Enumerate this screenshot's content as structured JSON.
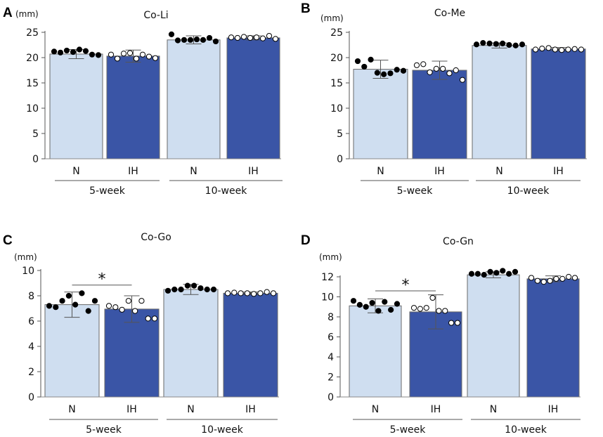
{
  "colors": {
    "N": "#cfdef0",
    "IH": "#3a55a6",
    "axis": "#555555",
    "dot_fill_N": "#000000",
    "dot_fill_IH": "#ffffff"
  },
  "chart_data": [
    {
      "type": "bar",
      "panel": "A",
      "title": "Co-Li",
      "ylabel": "(mm)",
      "ylim": [
        0,
        25
      ],
      "yticks": [
        0,
        5,
        10,
        15,
        20,
        25
      ],
      "categories": [
        "N",
        "IH",
        "N",
        "IH"
      ],
      "groups": [
        "5-week",
        "10-week"
      ],
      "series": [
        {
          "name": "N",
          "group": "5-week",
          "mean": 20.7,
          "sd": 0.9,
          "points": [
            21.2,
            21.0,
            21.4,
            21.1,
            21.6,
            21.3,
            20.6,
            20.5
          ],
          "hollow": false
        },
        {
          "name": "IH",
          "group": "5-week",
          "mean": 20.3,
          "sd": 1.2,
          "points": [
            20.6,
            19.8,
            20.8,
            20.9,
            19.8,
            20.6,
            20.2,
            19.9
          ],
          "hollow": true
        },
        {
          "name": "N",
          "group": "10-week",
          "mean": 23.5,
          "sd": 0.8,
          "points": [
            24.6,
            23.4,
            23.5,
            23.5,
            23.6,
            23.5,
            23.9,
            23.2
          ],
          "hollow": false
        },
        {
          "name": "IH",
          "group": "10-week",
          "mean": 23.9,
          "sd": 0.4,
          "points": [
            24.0,
            23.9,
            24.1,
            23.9,
            24.0,
            23.8,
            24.3,
            23.7
          ],
          "hollow": true
        }
      ]
    },
    {
      "type": "bar",
      "panel": "B",
      "title": "Co-Me",
      "ylabel": "(mm)",
      "ylim": [
        0,
        25
      ],
      "yticks": [
        0,
        5,
        10,
        15,
        20,
        25
      ],
      "categories": [
        "N",
        "IH",
        "N",
        "IH"
      ],
      "groups": [
        "5-week",
        "10-week"
      ],
      "series": [
        {
          "name": "N",
          "group": "5-week",
          "mean": 17.7,
          "sd": 1.8,
          "points": [
            19.3,
            18.2,
            19.6,
            17.0,
            16.7,
            16.9,
            17.6,
            17.4
          ],
          "hollow": false
        },
        {
          "name": "IH",
          "group": "5-week",
          "mean": 17.5,
          "sd": 1.8,
          "points": [
            18.5,
            18.7,
            17.1,
            17.8,
            17.8,
            16.9,
            17.5,
            15.6
          ],
          "hollow": true
        },
        {
          "name": "N",
          "group": "10-week",
          "mean": 22.4,
          "sd": 0.5,
          "points": [
            22.6,
            22.9,
            22.8,
            22.7,
            22.8,
            22.5,
            22.4,
            22.6
          ],
          "hollow": false
        },
        {
          "name": "IH",
          "group": "10-week",
          "mean": 21.7,
          "sd": 0.3,
          "points": [
            21.6,
            21.8,
            21.9,
            21.6,
            21.5,
            21.6,
            21.7,
            21.6
          ],
          "hollow": true
        }
      ]
    },
    {
      "type": "bar",
      "panel": "C",
      "title": "Co-Go",
      "ylabel": "(mm)",
      "ylim": [
        0,
        10
      ],
      "yticks": [
        0,
        2,
        4,
        6,
        8,
        10
      ],
      "categories": [
        "N",
        "IH",
        "N",
        "IH"
      ],
      "groups": [
        "5-week",
        "10-week"
      ],
      "series": [
        {
          "name": "N",
          "group": "5-week",
          "mean": 7.3,
          "sd": 1.0,
          "points": [
            7.2,
            7.1,
            7.6,
            8.0,
            7.3,
            8.2,
            6.8,
            7.6
          ],
          "hollow": false
        },
        {
          "name": "IH",
          "group": "5-week",
          "mean": 6.95,
          "sd": 1.05,
          "points": [
            7.2,
            7.1,
            6.9,
            7.6,
            6.8,
            7.6,
            6.2,
            6.2
          ],
          "hollow": true
        },
        {
          "name": "N",
          "group": "10-week",
          "mean": 8.5,
          "sd": 0.4,
          "points": [
            8.4,
            8.5,
            8.5,
            8.8,
            8.8,
            8.6,
            8.5,
            8.5
          ],
          "hollow": false
        },
        {
          "name": "IH",
          "group": "10-week",
          "mean": 8.2,
          "sd": 0.1,
          "points": [
            8.2,
            8.25,
            8.2,
            8.2,
            8.15,
            8.2,
            8.3,
            8.2
          ],
          "hollow": true
        }
      ],
      "significance": {
        "label": "*",
        "from_index": 0,
        "to_index": 1,
        "y_value": 8.85
      }
    },
    {
      "type": "bar",
      "panel": "D",
      "title": "Co-Gn",
      "ylabel": "(mm)",
      "ylim": [
        0,
        12
      ],
      "yticks": [
        0,
        2,
        4,
        6,
        8,
        10,
        12
      ],
      "categories": [
        "N",
        "IH",
        "N",
        "IH"
      ],
      "groups": [
        "5-week",
        "10-week"
      ],
      "series": [
        {
          "name": "N",
          "group": "5-week",
          "mean": 9.1,
          "sd": 0.7,
          "points": [
            9.6,
            9.2,
            9.0,
            9.4,
            8.6,
            9.5,
            8.7,
            9.3
          ],
          "hollow": false
        },
        {
          "name": "IH",
          "group": "5-week",
          "mean": 8.5,
          "sd": 1.7,
          "points": [
            8.9,
            8.8,
            8.9,
            9.9,
            8.6,
            8.6,
            7.4,
            7.4
          ],
          "hollow": true
        },
        {
          "name": "N",
          "group": "10-week",
          "mean": 12.2,
          "sd": 0.3,
          "points": [
            12.3,
            12.3,
            12.2,
            12.5,
            12.4,
            12.6,
            12.3,
            12.5
          ],
          "hollow": false
        },
        {
          "name": "IH",
          "group": "10-week",
          "mean": 11.8,
          "sd": 0.3,
          "points": [
            11.9,
            11.6,
            11.5,
            11.6,
            11.8,
            11.8,
            12.0,
            11.9
          ],
          "hollow": true
        }
      ],
      "significance": {
        "label": "*",
        "from_index": 0,
        "to_index": 1,
        "y_value": 10.6
      }
    }
  ]
}
